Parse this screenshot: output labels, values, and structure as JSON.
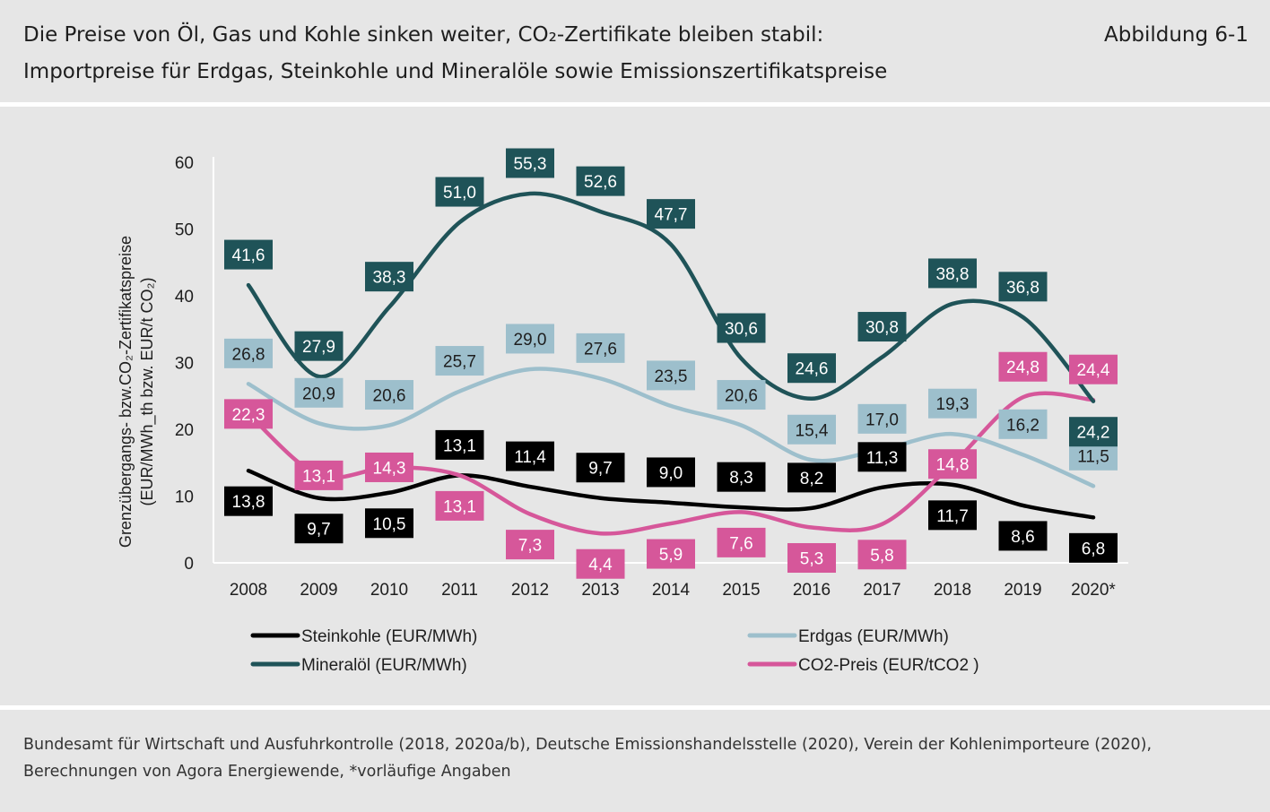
{
  "header": {
    "title": "Die Preise von Öl, Gas und Kohle sinken weiter, CO₂-Zertifikate bleiben stabil:",
    "subtitle": "Importpreise für Erdgas, Steinkohle und Mineralöle sowie Emissionszertifikatspreise",
    "figure_label": "Abbildung 6-1"
  },
  "chart_data": {
    "type": "line",
    "ylabel": "Grenzübergangs- bzw.CO₂-Zertifikatspreise (EUR/MWh_th bzw. EUR/t CO₂)",
    "ylabel_line1": "Grenzübergangs- bzw.CO₂-Zertifikatspreise",
    "ylabel_line2": "(EUR/MWh_th bzw. EUR/t CO₂)",
    "xlabel": "",
    "ylim": [
      0,
      60
    ],
    "yticks": [
      "0",
      "10",
      "20",
      "30",
      "40",
      "50",
      "60"
    ],
    "grid": false,
    "legend_position": "bottom",
    "categories": [
      "2008",
      "2009",
      "2010",
      "2011",
      "2012",
      "2013",
      "2014",
      "2015",
      "2016",
      "2017",
      "2018",
      "2019",
      "2020*"
    ],
    "series": [
      {
        "name": "Steinkohle (EUR/MWh)",
        "color": "#000000",
        "text_color": "#ffffff",
        "values": [
          13.8,
          9.7,
          10.5,
          13.1,
          11.4,
          9.7,
          9.0,
          8.3,
          8.2,
          11.3,
          11.7,
          8.6,
          6.8
        ],
        "labels": [
          "13,8",
          "9,7",
          "10,5",
          "13,1",
          "11,4",
          "9,7",
          "9,0",
          "8,3",
          "8,2",
          "11,3",
          "11,7",
          "8,6",
          "6,8"
        ],
        "label_position": [
          "below",
          "below",
          "below",
          "above",
          "above",
          "above",
          "above",
          "above",
          "above",
          "above",
          "below",
          "below",
          "below"
        ]
      },
      {
        "name": "Erdgas (EUR/MWh)",
        "color": "#9dbfcc",
        "text_color": "#1e1e1e",
        "values": [
          26.8,
          20.9,
          20.6,
          25.7,
          29.0,
          27.6,
          23.5,
          20.6,
          15.4,
          17.0,
          19.3,
          16.2,
          11.5
        ],
        "labels": [
          "26,8",
          "20,9",
          "20,6",
          "25,7",
          "29,0",
          "27,6",
          "23,5",
          "20,6",
          "15,4",
          "17,0",
          "19,3",
          "16,2",
          "11,5"
        ],
        "label_position": [
          "above",
          "above",
          "above",
          "above",
          "above",
          "above",
          "above",
          "above",
          "above",
          "above",
          "above",
          "above",
          "above"
        ]
      },
      {
        "name": "Mineralöl (EUR/MWh)",
        "color": "#1f5358",
        "text_color": "#ffffff",
        "values": [
          41.6,
          27.9,
          38.3,
          51.0,
          55.3,
          52.6,
          47.7,
          30.6,
          24.6,
          30.8,
          38.8,
          36.8,
          24.2
        ],
        "labels": [
          "41,6",
          "27,9",
          "38,3",
          "51,0",
          "55,3",
          "52,6",
          "47,7",
          "30,6",
          "24,6",
          "30,8",
          "38,8",
          "36,8",
          "24,2"
        ],
        "label_position": [
          "above",
          "above",
          "above",
          "above",
          "above",
          "above",
          "above",
          "above",
          "above",
          "above",
          "above",
          "above",
          "below"
        ]
      },
      {
        "name": "CO2-Preis (EUR/tCO2 )",
        "color": "#d6579a",
        "text_color": "#ffffff",
        "values": [
          22.3,
          13.1,
          14.3,
          13.1,
          7.3,
          4.4,
          5.9,
          7.6,
          5.3,
          5.8,
          14.8,
          24.8,
          24.4
        ],
        "labels": [
          "22,3",
          "13,1",
          "14,3",
          "13,1",
          "7,3",
          "4,4",
          "5,9",
          "7,6",
          "5,3",
          "5,8",
          "14,8",
          "24,8",
          "24,4"
        ],
        "label_position": [
          "on",
          "on",
          "on",
          "below",
          "below",
          "below",
          "below",
          "below",
          "below",
          "below",
          "on",
          "above",
          "above"
        ]
      }
    ]
  },
  "source": "Bundesamt für Wirtschaft und Ausfuhrkontrolle (2018, 2020a/b), Deutsche Emissionshandelsstelle (2020), Verein der Kohlenimporteure (2020), Berechnungen von Agora Energiewende, *vorläufige Angaben"
}
